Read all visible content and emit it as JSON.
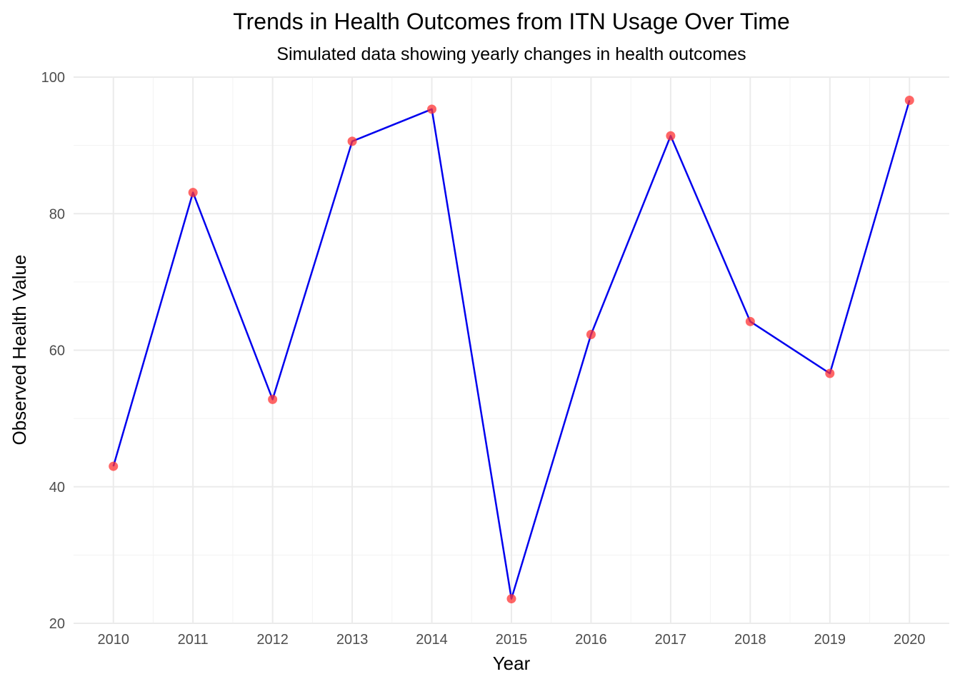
{
  "chart_data": {
    "type": "line",
    "title": "Trends in Health Outcomes from ITN Usage Over Time",
    "subtitle": "Simulated data showing yearly changes in health outcomes",
    "xlabel": "Year",
    "ylabel": "Observed Health Value",
    "x": [
      2010,
      2011,
      2012,
      2013,
      2014,
      2015,
      2016,
      2017,
      2018,
      2019,
      2020
    ],
    "xticks": [
      "2010",
      "2011",
      "2012",
      "2013",
      "2014",
      "2015",
      "2016",
      "2017",
      "2018",
      "2019",
      "2020"
    ],
    "yticks": [
      20,
      40,
      60,
      80,
      100
    ],
    "xlim": [
      2009.5,
      2020.5
    ],
    "ylim": [
      20,
      100
    ],
    "grid": true,
    "series": [
      {
        "values": [
          43.0,
          83.1,
          52.8,
          90.6,
          95.3,
          23.6,
          62.3,
          91.4,
          64.2,
          56.6,
          96.6
        ],
        "line_color": "#0000ee",
        "point_color": "#ff3333"
      }
    ]
  }
}
